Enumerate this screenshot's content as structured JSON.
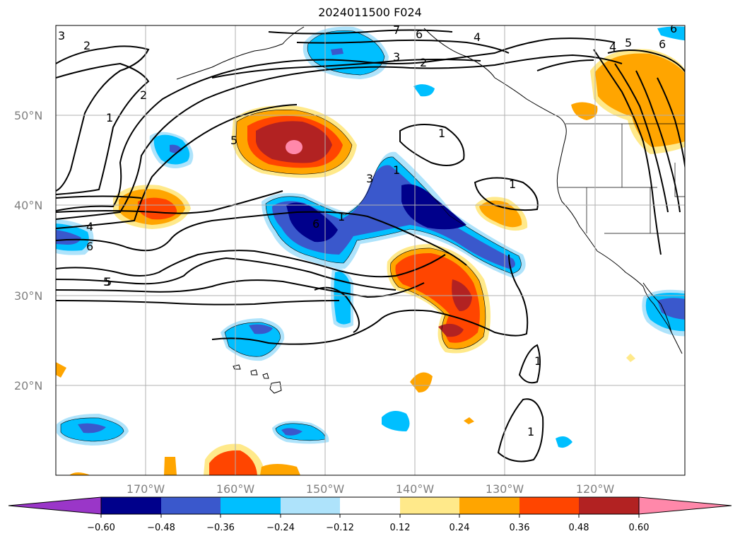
{
  "title": "2024011500 F024",
  "map": {
    "projection_extent": {
      "lon_min": -180,
      "lon_max": -110,
      "lat_min": 10,
      "lat_max": 60
    },
    "lat_ticks": [
      "20°N",
      "30°N",
      "40°N",
      "50°N"
    ],
    "lon_ticks": [
      "170°W",
      "160°W",
      "150°W",
      "140°W",
      "130°W",
      "120°W"
    ],
    "grid": true,
    "contour_labels": [
      "3",
      "2",
      "2",
      "1",
      "7",
      "6",
      "4",
      "3",
      "2",
      "5",
      "4",
      "6",
      "6",
      "5",
      "5",
      "3",
      "1",
      "1",
      "1",
      "4",
      "6",
      "5",
      "6",
      "1",
      "1",
      "1"
    ],
    "colorbar": {
      "extend": "both",
      "ticks": [
        "−0.60",
        "−0.48",
        "−0.36",
        "−0.24",
        "−0.12",
        "0.12",
        "0.24",
        "0.36",
        "0.48",
        "0.60"
      ],
      "colors": [
        "#9a36c8",
        "#00008b",
        "#3a58cc",
        "#00bfff",
        "#aee3fb",
        "#ffffff",
        "#ffe98a",
        "#ffa500",
        "#ff4500",
        "#b22222",
        "#ff88aa"
      ]
    }
  }
}
